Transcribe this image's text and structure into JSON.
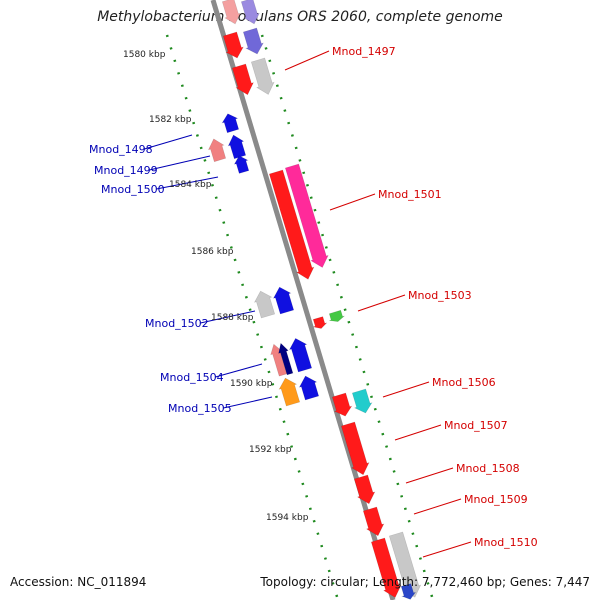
{
  "title": "Methylobacterium nodulans ORS 2060, complete genome",
  "footer": {
    "accession": "Accession: NC_011894",
    "summary": "Topology: circular; Length: 7,772,460 bp; Genes: 7,447"
  },
  "kbp_labels": [
    "1580 kbp",
    "1582 kbp",
    "1584 kbp",
    "1586 kbp",
    "1588 kbp",
    "1590 kbp",
    "1592 kbp",
    "1594 kbp"
  ],
  "genes_plus": [
    "Mnod_1497",
    "Mnod_1501",
    "Mnod_1503",
    "Mnod_1506",
    "Mnod_1507",
    "Mnod_1508",
    "Mnod_1509",
    "Mnod_1510"
  ],
  "genes_minus": [
    "Mnod_1498",
    "Mnod_1499",
    "Mnod_1500",
    "Mnod_1502",
    "Mnod_1504",
    "Mnod_1505"
  ],
  "colors": {
    "plus_label": "#d40000",
    "minus_label": "#0000b4",
    "ruler_dots": "#1f8a1f",
    "backbone": "#8a8a8a"
  }
}
